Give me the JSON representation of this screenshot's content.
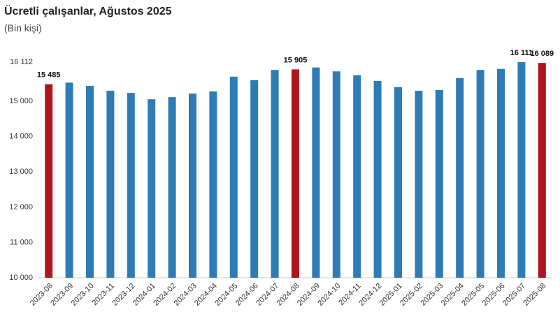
{
  "chart_data": {
    "type": "bar",
    "title": "Ücretli çalışanlar, Ağustos 2025",
    "subtitle": "(Bin kişi)",
    "categories": [
      "2023-08",
      "2023-09",
      "2023-10",
      "2023-11",
      "2023-12",
      "2024-01",
      "2024-02",
      "2024-03",
      "2024-04",
      "2024-05",
      "2024-06",
      "2024-07",
      "2024-08",
      "2024-09",
      "2024-10",
      "2024-11",
      "2024-12",
      "2025-01",
      "2025-02",
      "2025-03",
      "2025-04",
      "2025-05",
      "2025-06",
      "2025-07",
      "2025-08"
    ],
    "values": [
      15485,
      15530,
      15440,
      15300,
      15240,
      15060,
      15120,
      15220,
      15280,
      15700,
      15600,
      15890,
      15905,
      15960,
      15850,
      15740,
      15580,
      15400,
      15300,
      15320,
      15660,
      15890,
      15920,
      16111,
      16089
    ],
    "value_labels": [
      "15 485",
      null,
      null,
      null,
      null,
      null,
      null,
      null,
      null,
      null,
      null,
      null,
      "15 905",
      null,
      null,
      null,
      null,
      null,
      null,
      null,
      null,
      null,
      null,
      "16 111",
      "16 089"
    ],
    "colors": [
      "#b0141c",
      "#2e7bb6",
      "#2e7bb6",
      "#2e7bb6",
      "#2e7bb6",
      "#2e7bb6",
      "#2e7bb6",
      "#2e7bb6",
      "#2e7bb6",
      "#2e7bb6",
      "#2e7bb6",
      "#2e7bb6",
      "#b0141c",
      "#2e7bb6",
      "#2e7bb6",
      "#2e7bb6",
      "#2e7bb6",
      "#2e7bb6",
      "#2e7bb6",
      "#2e7bb6",
      "#2e7bb6",
      "#2e7bb6",
      "#2e7bb6",
      "#2e7bb6",
      "#b0141c"
    ],
    "ylim": [
      10000,
      16112
    ],
    "yticks": [
      {
        "value": 10000,
        "label": "10 000"
      },
      {
        "value": 11000,
        "label": "11 000"
      },
      {
        "value": 12000,
        "label": "12 000"
      },
      {
        "value": 13000,
        "label": "13 000"
      },
      {
        "value": 14000,
        "label": "14 000"
      },
      {
        "value": 15000,
        "label": "15 000"
      },
      {
        "value": 16112,
        "label": "16 112"
      }
    ],
    "grid": false
  }
}
